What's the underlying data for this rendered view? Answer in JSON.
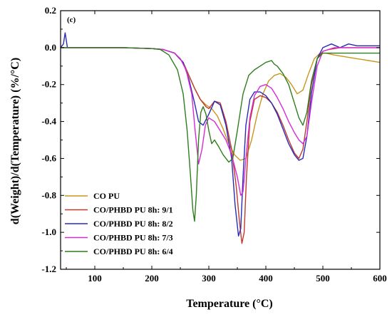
{
  "chart_data": {
    "type": "line",
    "panel_label": "(c)",
    "xlabel": "Temperature (°C)",
    "ylabel": "d(Weight)/d(Temperature) (%/°C)",
    "xlim": [
      40,
      600
    ],
    "ylim": [
      -1.2,
      0.2
    ],
    "xticks": [
      100,
      200,
      300,
      400,
      500,
      600
    ],
    "yticks": [
      0.2,
      0.0,
      -0.2,
      -0.4,
      -0.6,
      -0.8,
      -1.0,
      -1.2
    ],
    "ytick_labels": [
      "0.2",
      "0.0",
      "-0.2",
      "-0.4",
      "-0.6",
      "-0.8",
      "-1.0",
      "-1.2"
    ],
    "grid": false,
    "legend_position": "bottom-left",
    "series": [
      {
        "name": "CO PU",
        "color": "#c8961e",
        "x": [
          40,
          100,
          150,
          200,
          220,
          240,
          255,
          265,
          275,
          285,
          295,
          305,
          315,
          325,
          335,
          345,
          355,
          365,
          375,
          385,
          395,
          405,
          415,
          425,
          435,
          445,
          455,
          465,
          475,
          485,
          495,
          505,
          520,
          540,
          560,
          580,
          600
        ],
        "y": [
          0.0,
          0.0,
          0.0,
          -0.005,
          -0.01,
          -0.03,
          -0.08,
          -0.15,
          -0.22,
          -0.28,
          -0.31,
          -0.33,
          -0.37,
          -0.44,
          -0.52,
          -0.58,
          -0.61,
          -0.6,
          -0.5,
          -0.36,
          -0.25,
          -0.18,
          -0.15,
          -0.14,
          -0.16,
          -0.2,
          -0.25,
          -0.23,
          -0.14,
          -0.06,
          -0.03,
          -0.03,
          -0.04,
          -0.05,
          -0.06,
          -0.07,
          -0.08
        ]
      },
      {
        "name": "CO/PHBD PU 8h: 9/1",
        "color": "#c0392b",
        "x": [
          40,
          100,
          150,
          200,
          220,
          240,
          255,
          265,
          275,
          285,
          295,
          300,
          310,
          320,
          330,
          340,
          348,
          354,
          358,
          362,
          366,
          372,
          380,
          390,
          400,
          410,
          420,
          430,
          440,
          450,
          458,
          465,
          472,
          480,
          490,
          500,
          510,
          530,
          560,
          600
        ],
        "y": [
          0.0,
          0.0,
          0.0,
          -0.005,
          -0.01,
          -0.03,
          -0.08,
          -0.15,
          -0.22,
          -0.28,
          -0.32,
          -0.33,
          -0.29,
          -0.3,
          -0.4,
          -0.55,
          -0.75,
          -0.95,
          -1.06,
          -1.0,
          -0.7,
          -0.4,
          -0.28,
          -0.26,
          -0.27,
          -0.3,
          -0.35,
          -0.42,
          -0.5,
          -0.57,
          -0.6,
          -0.55,
          -0.4,
          -0.2,
          -0.06,
          -0.02,
          -0.01,
          0.0,
          0.0,
          0.0
        ]
      },
      {
        "name": "CO/PHBD PU 8h: 8/2",
        "color": "#2a2ab8",
        "x": [
          40,
          45,
          48,
          52,
          60,
          100,
          150,
          200,
          220,
          240,
          255,
          265,
          275,
          282,
          290,
          300,
          310,
          320,
          330,
          340,
          346,
          352,
          356,
          360,
          365,
          372,
          380,
          390,
          400,
          410,
          420,
          430,
          440,
          450,
          458,
          465,
          472,
          480,
          490,
          500,
          515,
          530,
          545,
          560,
          600
        ],
        "y": [
          0.0,
          0.02,
          0.08,
          0.0,
          0.0,
          0.0,
          0.0,
          -0.005,
          -0.01,
          -0.03,
          -0.08,
          -0.17,
          -0.3,
          -0.4,
          -0.42,
          -0.36,
          -0.29,
          -0.31,
          -0.42,
          -0.6,
          -0.85,
          -1.02,
          -0.98,
          -0.7,
          -0.42,
          -0.28,
          -0.24,
          -0.24,
          -0.26,
          -0.3,
          -0.36,
          -0.44,
          -0.52,
          -0.58,
          -0.61,
          -0.6,
          -0.48,
          -0.25,
          -0.06,
          0.0,
          0.02,
          0.0,
          0.02,
          0.01,
          0.01
        ]
      },
      {
        "name": "CO/PHBD PU 8h: 7/3",
        "color": "#d62ad6",
        "x": [
          40,
          100,
          150,
          200,
          220,
          240,
          250,
          260,
          270,
          276,
          282,
          288,
          294,
          300,
          310,
          320,
          330,
          340,
          350,
          356,
          360,
          365,
          372,
          380,
          390,
          400,
          410,
          420,
          430,
          440,
          450,
          458,
          465,
          472,
          480,
          490,
          500,
          520,
          560,
          600
        ],
        "y": [
          0.0,
          0.0,
          0.0,
          -0.005,
          -0.01,
          -0.03,
          -0.06,
          -0.12,
          -0.25,
          -0.45,
          -0.63,
          -0.55,
          -0.42,
          -0.38,
          -0.4,
          -0.45,
          -0.5,
          -0.58,
          -0.7,
          -0.8,
          -0.78,
          -0.6,
          -0.38,
          -0.26,
          -0.21,
          -0.2,
          -0.22,
          -0.27,
          -0.33,
          -0.4,
          -0.46,
          -0.5,
          -0.52,
          -0.48,
          -0.3,
          -0.1,
          -0.02,
          0.0,
          0.0,
          0.0
        ]
      },
      {
        "name": "CO/PHBD PU 8h: 6/4",
        "color": "#2e7d1e",
        "x": [
          40,
          100,
          150,
          200,
          215,
          230,
          245,
          255,
          262,
          268,
          272,
          275,
          278,
          282,
          286,
          290,
          295,
          300,
          305,
          310,
          318,
          325,
          335,
          342,
          350,
          360,
          370,
          380,
          390,
          400,
          410,
          415,
          420,
          430,
          440,
          450,
          458,
          465,
          472,
          480,
          490,
          500,
          515,
          530,
          560,
          600
        ],
        "y": [
          0.0,
          0.0,
          0.0,
          -0.005,
          -0.01,
          -0.04,
          -0.12,
          -0.25,
          -0.45,
          -0.7,
          -0.88,
          -0.94,
          -0.8,
          -0.5,
          -0.35,
          -0.32,
          -0.36,
          -0.45,
          -0.52,
          -0.5,
          -0.54,
          -0.58,
          -0.62,
          -0.6,
          -0.45,
          -0.25,
          -0.15,
          -0.12,
          -0.1,
          -0.08,
          -0.07,
          -0.09,
          -0.1,
          -0.14,
          -0.2,
          -0.3,
          -0.38,
          -0.42,
          -0.35,
          -0.18,
          -0.06,
          -0.03,
          -0.03,
          -0.03,
          -0.03,
          -0.03
        ]
      }
    ]
  }
}
